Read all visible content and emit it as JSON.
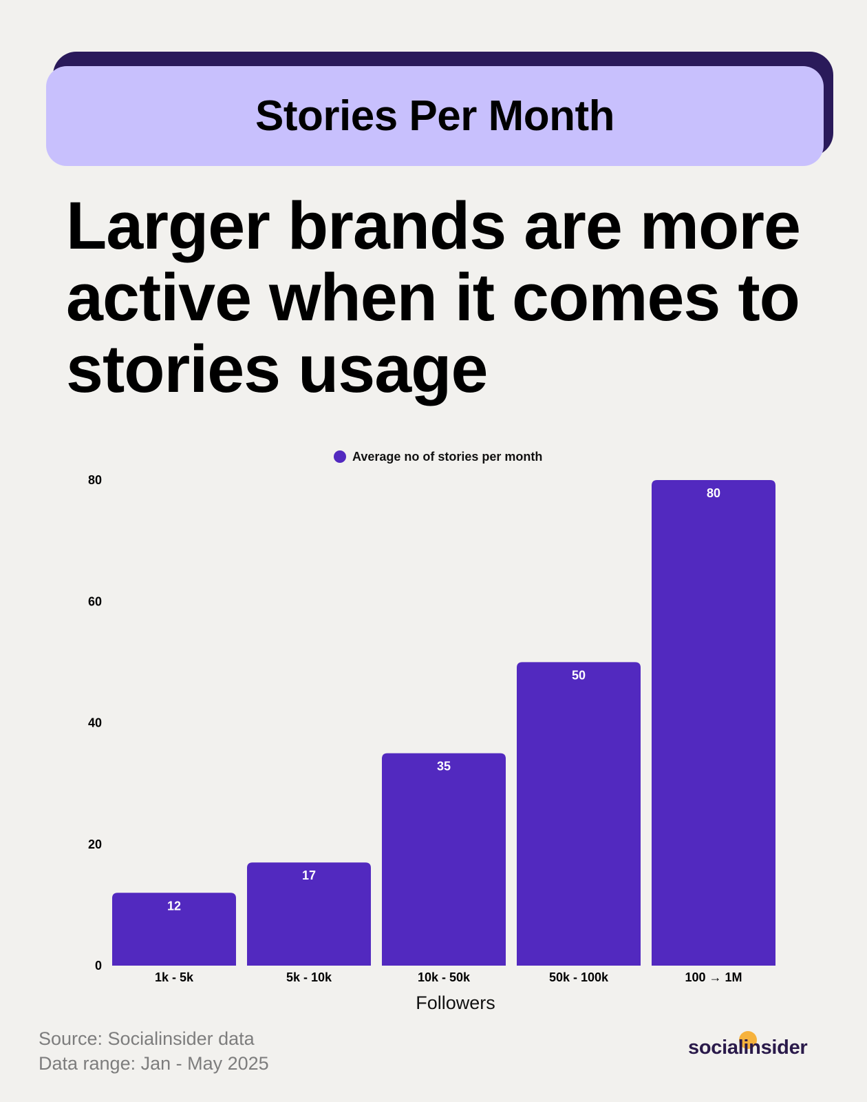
{
  "banner": {
    "title": "Stories Per Month"
  },
  "headline": "Larger brands are more active when it comes to stories usage",
  "colors": {
    "bar": "#5229bf",
    "banner": "#c8c0fd",
    "banner_shadow": "#2a1a5a",
    "background": "#f2f1ee",
    "logo_dot": "#f6b23c"
  },
  "chart_data": {
    "type": "bar",
    "title": "",
    "xlabel": "Followers",
    "ylabel": "",
    "categories": [
      "1k - 5k",
      "5k - 10k",
      "10k - 50k",
      "50k - 100k",
      "100 → 1M"
    ],
    "series": [
      {
        "name": "Average no of stories per month",
        "values": [
          12,
          17,
          35,
          50,
          80
        ]
      }
    ],
    "ylim": [
      0,
      80
    ],
    "yticks": [
      0,
      20,
      40,
      60,
      80
    ],
    "grid": false,
    "legend": "top-center",
    "data_labels": true
  },
  "footer": {
    "source": "Source: Socialinsider data",
    "range": "Data range: Jan - May 2025",
    "logo": "socialinsider"
  }
}
